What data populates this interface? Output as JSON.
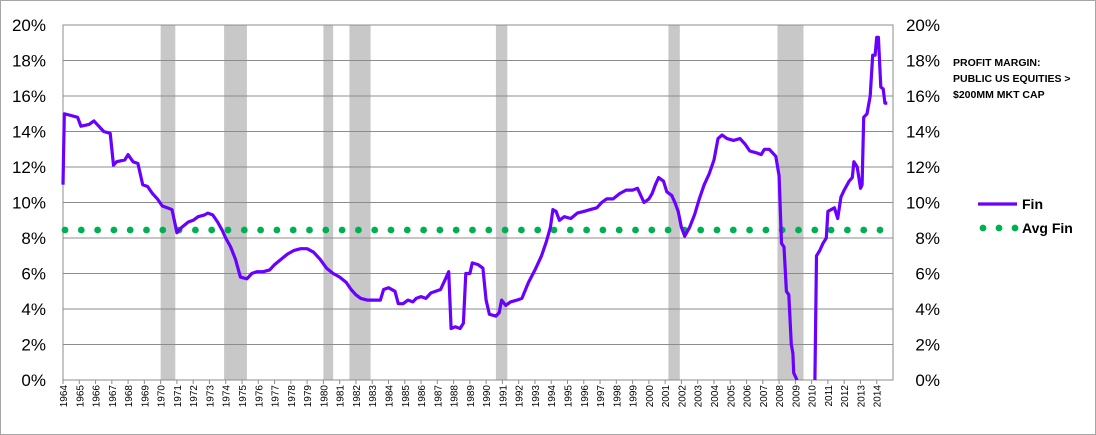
{
  "chart_data": {
    "type": "line",
    "title": "",
    "annotation_lines": [
      "PROFIT MARGIN:",
      "PUBLIC US EQUITIES >",
      "$200MM MKT  CAP"
    ],
    "xlabel": "",
    "ylabel": "",
    "y_tick_labels": [
      "0%",
      "2%",
      "4%",
      "6%",
      "8%",
      "10%",
      "12%",
      "14%",
      "16%",
      "18%",
      "20%"
    ],
    "ylim": [
      0,
      20
    ],
    "xlim": [
      1964,
      2015
    ],
    "x_tick_labels": [
      "1964",
      "1965",
      "1966",
      "1967",
      "1968",
      "1969",
      "1970",
      "1971",
      "1972",
      "1973",
      "1974",
      "1975",
      "1976",
      "1977",
      "1978",
      "1979",
      "1980",
      "1981",
      "1982",
      "1983",
      "1984",
      "1985",
      "1986",
      "1987",
      "1988",
      "1989",
      "1990",
      "1991",
      "1992",
      "1993",
      "1994",
      "1995",
      "1996",
      "1997",
      "1998",
      "1999",
      "2000",
      "2001",
      "2002",
      "2003",
      "2004",
      "2005",
      "2006",
      "2007",
      "2008",
      "2009",
      "2010",
      "2011",
      "2012",
      "2013",
      "2014"
    ],
    "grid": "horizontal",
    "legend_position": "right",
    "recessions": [
      [
        1970.0,
        1970.9
      ],
      [
        1973.9,
        1975.3
      ],
      [
        1980.0,
        1980.6
      ],
      [
        1981.6,
        1982.9
      ],
      [
        1990.6,
        1991.3
      ],
      [
        2001.2,
        2001.9
      ],
      [
        2007.9,
        2009.5
      ]
    ],
    "series": [
      {
        "name": "Fin",
        "color": "#6a00ff",
        "style": "line",
        "points": [
          [
            1964.0,
            11.0
          ],
          [
            1964.08,
            15.0
          ],
          [
            1964.5,
            14.9
          ],
          [
            1964.9,
            14.8
          ],
          [
            1965.1,
            14.3
          ],
          [
            1965.6,
            14.4
          ],
          [
            1965.9,
            14.6
          ],
          [
            1966.2,
            14.3
          ],
          [
            1966.5,
            14.0
          ],
          [
            1966.9,
            13.9
          ],
          [
            1967.1,
            12.1
          ],
          [
            1967.3,
            12.3
          ],
          [
            1967.8,
            12.4
          ],
          [
            1968.0,
            12.7
          ],
          [
            1968.3,
            12.3
          ],
          [
            1968.6,
            12.2
          ],
          [
            1968.9,
            11.0
          ],
          [
            1969.2,
            10.9
          ],
          [
            1969.5,
            10.5
          ],
          [
            1969.8,
            10.2
          ],
          [
            1970.1,
            9.8
          ],
          [
            1970.4,
            9.7
          ],
          [
            1970.7,
            9.6
          ],
          [
            1971.0,
            8.3
          ],
          [
            1971.3,
            8.6
          ],
          [
            1971.7,
            8.9
          ],
          [
            1972.0,
            9.0
          ],
          [
            1972.3,
            9.2
          ],
          [
            1972.7,
            9.3
          ],
          [
            1972.9,
            9.4
          ],
          [
            1973.2,
            9.3
          ],
          [
            1973.5,
            8.9
          ],
          [
            1973.8,
            8.4
          ],
          [
            1974.0,
            8.0
          ],
          [
            1974.3,
            7.5
          ],
          [
            1974.6,
            6.8
          ],
          [
            1974.9,
            5.8
          ],
          [
            1975.3,
            5.7
          ],
          [
            1975.6,
            6.0
          ],
          [
            1975.9,
            6.1
          ],
          [
            1976.3,
            6.1
          ],
          [
            1976.7,
            6.2
          ],
          [
            1977.0,
            6.5
          ],
          [
            1977.4,
            6.8
          ],
          [
            1977.8,
            7.1
          ],
          [
            1978.2,
            7.3
          ],
          [
            1978.6,
            7.4
          ],
          [
            1979.0,
            7.4
          ],
          [
            1979.4,
            7.2
          ],
          [
            1979.8,
            6.8
          ],
          [
            1980.2,
            6.3
          ],
          [
            1980.6,
            6.0
          ],
          [
            1981.0,
            5.8
          ],
          [
            1981.4,
            5.5
          ],
          [
            1981.7,
            5.1
          ],
          [
            1982.0,
            4.8
          ],
          [
            1982.3,
            4.6
          ],
          [
            1982.7,
            4.5
          ],
          [
            1983.0,
            4.5
          ],
          [
            1983.3,
            4.5
          ],
          [
            1983.5,
            4.5
          ],
          [
            1983.7,
            5.1
          ],
          [
            1984.0,
            5.2
          ],
          [
            1984.4,
            5.0
          ],
          [
            1984.6,
            4.3
          ],
          [
            1984.9,
            4.3
          ],
          [
            1985.2,
            4.5
          ],
          [
            1985.5,
            4.4
          ],
          [
            1985.7,
            4.6
          ],
          [
            1986.0,
            4.7
          ],
          [
            1986.3,
            4.6
          ],
          [
            1986.6,
            4.9
          ],
          [
            1986.9,
            5.0
          ],
          [
            1987.2,
            5.1
          ],
          [
            1987.5,
            5.7
          ],
          [
            1987.7,
            6.1
          ],
          [
            1987.85,
            2.9
          ],
          [
            1988.1,
            3.0
          ],
          [
            1988.4,
            2.9
          ],
          [
            1988.6,
            3.2
          ],
          [
            1988.75,
            6.0
          ],
          [
            1989.0,
            6.0
          ],
          [
            1989.15,
            6.6
          ],
          [
            1989.5,
            6.5
          ],
          [
            1989.8,
            6.3
          ],
          [
            1990.0,
            4.5
          ],
          [
            1990.2,
            3.7
          ],
          [
            1990.6,
            3.6
          ],
          [
            1990.8,
            3.8
          ],
          [
            1990.95,
            4.5
          ],
          [
            1991.2,
            4.2
          ],
          [
            1991.5,
            4.4
          ],
          [
            1991.9,
            4.5
          ],
          [
            1992.2,
            4.6
          ],
          [
            1992.6,
            5.5
          ],
          [
            1993.0,
            6.2
          ],
          [
            1993.4,
            7.0
          ],
          [
            1993.7,
            7.8
          ],
          [
            1993.95,
            8.6
          ],
          [
            1994.1,
            9.6
          ],
          [
            1994.3,
            9.5
          ],
          [
            1994.5,
            9.0
          ],
          [
            1994.8,
            9.2
          ],
          [
            1995.2,
            9.1
          ],
          [
            1995.6,
            9.4
          ],
          [
            1996.0,
            9.5
          ],
          [
            1996.4,
            9.6
          ],
          [
            1996.8,
            9.7
          ],
          [
            1997.1,
            10.0
          ],
          [
            1997.4,
            10.2
          ],
          [
            1997.8,
            10.2
          ],
          [
            1998.2,
            10.5
          ],
          [
            1998.6,
            10.7
          ],
          [
            1999.0,
            10.7
          ],
          [
            1999.3,
            10.8
          ],
          [
            1999.7,
            10.0
          ],
          [
            2000.0,
            10.2
          ],
          [
            2000.2,
            10.5
          ],
          [
            2000.4,
            11.0
          ],
          [
            2000.6,
            11.4
          ],
          [
            2000.9,
            11.2
          ],
          [
            2001.1,
            10.6
          ],
          [
            2001.4,
            10.4
          ],
          [
            2001.6,
            10.0
          ],
          [
            2001.8,
            9.5
          ],
          [
            2002.0,
            8.6
          ],
          [
            2002.2,
            8.1
          ],
          [
            2002.5,
            8.6
          ],
          [
            2002.8,
            9.3
          ],
          [
            2003.1,
            10.2
          ],
          [
            2003.4,
            11.0
          ],
          [
            2003.7,
            11.6
          ],
          [
            2004.0,
            12.4
          ],
          [
            2004.25,
            13.6
          ],
          [
            2004.5,
            13.8
          ],
          [
            2004.8,
            13.6
          ],
          [
            2005.2,
            13.5
          ],
          [
            2005.6,
            13.6
          ],
          [
            2005.9,
            13.3
          ],
          [
            2006.2,
            12.9
          ],
          [
            2006.6,
            12.8
          ],
          [
            2006.9,
            12.7
          ],
          [
            2007.1,
            13.0
          ],
          [
            2007.4,
            13.0
          ],
          [
            2007.8,
            12.6
          ],
          [
            2008.0,
            11.5
          ],
          [
            2008.15,
            7.7
          ],
          [
            2008.3,
            7.5
          ],
          [
            2008.45,
            5.0
          ],
          [
            2008.6,
            4.8
          ],
          [
            2008.75,
            2.0
          ],
          [
            2008.85,
            1.5
          ],
          [
            2008.9,
            0.4
          ],
          [
            2009.1,
            0.0
          ]
        ]
      },
      {
        "name": "Fin",
        "color": "#6a00ff",
        "style": "line",
        "points": [
          [
            2010.2,
            0.0
          ],
          [
            2010.3,
            7.0
          ],
          [
            2010.5,
            7.3
          ],
          [
            2010.7,
            7.7
          ],
          [
            2010.9,
            8.0
          ],
          [
            2011.0,
            9.5
          ],
          [
            2011.4,
            9.7
          ],
          [
            2011.6,
            9.1
          ],
          [
            2011.8,
            10.3
          ],
          [
            2012.0,
            10.7
          ],
          [
            2012.3,
            11.2
          ],
          [
            2012.5,
            11.4
          ],
          [
            2012.6,
            12.3
          ],
          [
            2012.8,
            12.0
          ],
          [
            2013.0,
            10.8
          ],
          [
            2013.1,
            11.0
          ],
          [
            2013.2,
            14.8
          ],
          [
            2013.4,
            15.0
          ],
          [
            2013.6,
            16.0
          ],
          [
            2013.75,
            18.3
          ],
          [
            2013.9,
            18.3
          ],
          [
            2014.0,
            19.3
          ],
          [
            2014.1,
            19.3
          ],
          [
            2014.25,
            16.5
          ],
          [
            2014.4,
            16.4
          ],
          [
            2014.5,
            15.6
          ],
          [
            2014.65,
            15.6
          ]
        ]
      }
    ],
    "average": {
      "name": "Avg Fin",
      "value": 8.45,
      "color": "#00b050",
      "style": "dotted"
    }
  }
}
